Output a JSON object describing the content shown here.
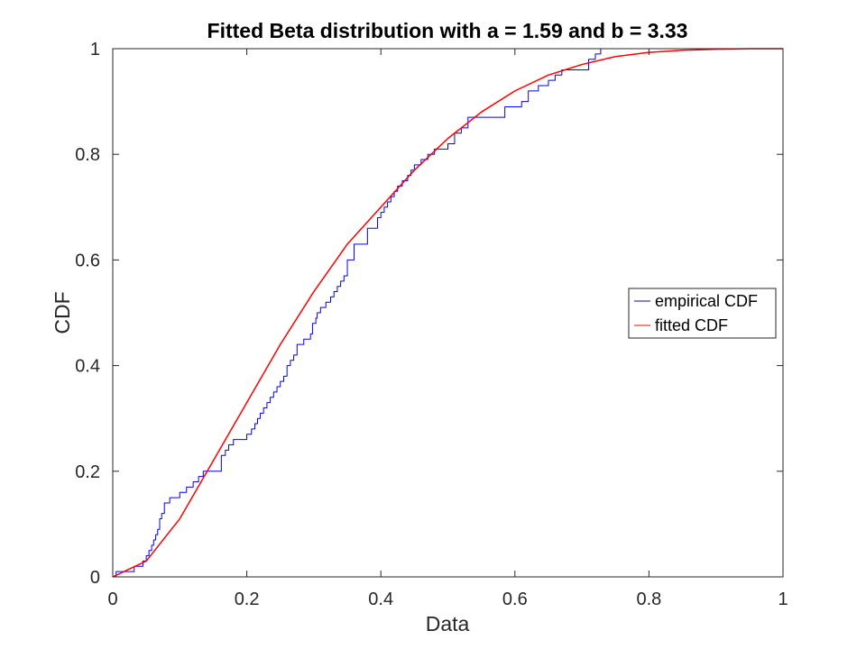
{
  "chart_data": {
    "type": "line",
    "title": "Fitted Beta distribution with a = 1.59 and b = 3.33",
    "xlabel": "Data",
    "ylabel": "CDF",
    "xlim": [
      0,
      1
    ],
    "ylim": [
      0,
      1
    ],
    "xticks": [
      0,
      0.2,
      0.4,
      0.6,
      0.8,
      1
    ],
    "xtick_labels": [
      "0",
      "0.2",
      "0.4",
      "0.6",
      "0.8",
      "1"
    ],
    "yticks": [
      0,
      0.2,
      0.4,
      0.6,
      0.8,
      1
    ],
    "ytick_labels": [
      "0",
      "0.2",
      "0.4",
      "0.6",
      "0.8",
      "1"
    ],
    "grid": false,
    "legend_position": "right",
    "fit_params": {
      "a": 1.59,
      "b": 3.33
    },
    "series": [
      {
        "name": "empirical CDF",
        "color": "#0000ff",
        "style": "step",
        "x": [
          0.005,
          0.012,
          0.032,
          0.045,
          0.05,
          0.054,
          0.058,
          0.061,
          0.064,
          0.067,
          0.07,
          0.073,
          0.077,
          0.085,
          0.1,
          0.11,
          0.12,
          0.128,
          0.135,
          0.15,
          0.162,
          0.168,
          0.173,
          0.18,
          0.2,
          0.207,
          0.212,
          0.216,
          0.22,
          0.225,
          0.23,
          0.235,
          0.24,
          0.245,
          0.25,
          0.255,
          0.26,
          0.265,
          0.27,
          0.275,
          0.28,
          0.285,
          0.295,
          0.298,
          0.3,
          0.303,
          0.305,
          0.31,
          0.318,
          0.325,
          0.33,
          0.335,
          0.34,
          0.345,
          0.35,
          0.36,
          0.375,
          0.38,
          0.39,
          0.395,
          0.4,
          0.405,
          0.41,
          0.415,
          0.42,
          0.425,
          0.432,
          0.44,
          0.445,
          0.45,
          0.455,
          0.46,
          0.47,
          0.48,
          0.485,
          0.5,
          0.51,
          0.52,
          0.53,
          0.56,
          0.585,
          0.6,
          0.61,
          0.62,
          0.635,
          0.65,
          0.66,
          0.67,
          0.69,
          0.71,
          0.72,
          0.728,
          1.0
        ],
        "y": [
          0.01,
          0.01,
          0.02,
          0.03,
          0.04,
          0.05,
          0.06,
          0.07,
          0.08,
          0.09,
          0.11,
          0.12,
          0.14,
          0.15,
          0.16,
          0.17,
          0.18,
          0.19,
          0.2,
          0.2,
          0.23,
          0.24,
          0.25,
          0.26,
          0.27,
          0.28,
          0.29,
          0.3,
          0.31,
          0.32,
          0.33,
          0.34,
          0.35,
          0.36,
          0.37,
          0.38,
          0.4,
          0.41,
          0.42,
          0.44,
          0.44,
          0.45,
          0.46,
          0.48,
          0.48,
          0.49,
          0.5,
          0.51,
          0.52,
          0.53,
          0.54,
          0.55,
          0.56,
          0.57,
          0.6,
          0.63,
          0.63,
          0.66,
          0.66,
          0.68,
          0.69,
          0.7,
          0.71,
          0.72,
          0.73,
          0.74,
          0.75,
          0.76,
          0.77,
          0.78,
          0.78,
          0.79,
          0.8,
          0.81,
          0.81,
          0.82,
          0.84,
          0.85,
          0.87,
          0.87,
          0.89,
          0.89,
          0.9,
          0.92,
          0.93,
          0.94,
          0.95,
          0.96,
          0.96,
          0.98,
          0.99,
          1.0,
          1.0
        ]
      },
      {
        "name": "fitted CDF",
        "color": "#ff0000",
        "style": "line",
        "x": [
          0,
          0.05,
          0.1,
          0.15,
          0.2,
          0.25,
          0.3,
          0.35,
          0.4,
          0.45,
          0.5,
          0.55,
          0.6,
          0.65,
          0.7,
          0.75,
          0.8,
          0.85,
          0.9,
          0.95,
          1.0
        ],
        "y": [
          0,
          0.03,
          0.11,
          0.22,
          0.33,
          0.44,
          0.54,
          0.63,
          0.7,
          0.77,
          0.83,
          0.88,
          0.92,
          0.95,
          0.97,
          0.985,
          0.993,
          0.997,
          0.999,
          1.0,
          1.0
        ]
      }
    ]
  }
}
